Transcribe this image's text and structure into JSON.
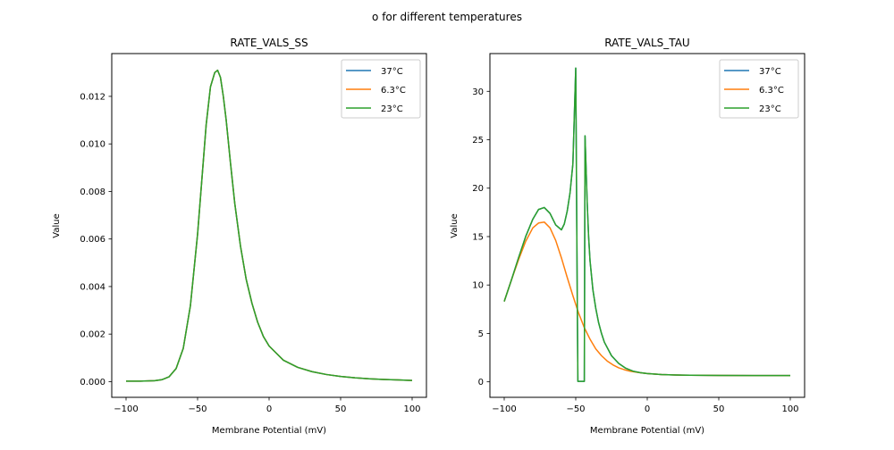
{
  "figure": {
    "suptitle": "o for different temperatures"
  },
  "chart_data": [
    {
      "type": "line",
      "title": "RATE_VALS_SS",
      "xlabel": "Membrane Potential (mV)",
      "ylabel": "Value",
      "xlim": [
        -110,
        110
      ],
      "ylim": [
        -0.00066,
        0.0138
      ],
      "xticks": [
        -100,
        -50,
        0,
        50,
        100
      ],
      "xtick_labels": [
        "−100",
        "−50",
        "0",
        "50",
        "100"
      ],
      "yticks": [
        0.0,
        0.002,
        0.004,
        0.006,
        0.008,
        0.01,
        0.012
      ],
      "ytick_labels": [
        "0.000",
        "0.002",
        "0.004",
        "0.006",
        "0.008",
        "0.010",
        "0.012"
      ],
      "grid": false,
      "legend_position": "top-right",
      "x": [
        -100,
        -90,
        -80,
        -75,
        -70,
        -65,
        -60,
        -55,
        -50,
        -47,
        -44,
        -41,
        -38,
        -36,
        -34,
        -32,
        -30,
        -27,
        -24,
        -20,
        -16,
        -12,
        -8,
        -4,
        0,
        5,
        10,
        15,
        20,
        30,
        40,
        50,
        60,
        70,
        80,
        90,
        100
      ],
      "series": [
        {
          "name": "37°C",
          "color": "#1f77b4",
          "values": [
            2e-05,
            2e-05,
            4e-05,
            8e-05,
            0.0002,
            0.00055,
            0.0014,
            0.0032,
            0.0062,
            0.0085,
            0.0108,
            0.0124,
            0.013,
            0.0131,
            0.0128,
            0.012,
            0.011,
            0.0092,
            0.0075,
            0.0057,
            0.0043,
            0.0033,
            0.0025,
            0.0019,
            0.0015,
            0.0012,
            0.0009,
            0.00075,
            0.0006,
            0.00042,
            0.0003,
            0.00022,
            0.00016,
            0.00012,
            9e-05,
            7e-05,
            5e-05
          ]
        },
        {
          "name": "6.3°C",
          "color": "#ff7f0e",
          "values": [
            2e-05,
            2e-05,
            4e-05,
            8e-05,
            0.0002,
            0.00055,
            0.0014,
            0.0032,
            0.0062,
            0.0085,
            0.0108,
            0.0124,
            0.013,
            0.0131,
            0.0128,
            0.012,
            0.011,
            0.0092,
            0.0075,
            0.0057,
            0.0043,
            0.0033,
            0.0025,
            0.0019,
            0.0015,
            0.0012,
            0.0009,
            0.00075,
            0.0006,
            0.00042,
            0.0003,
            0.00022,
            0.00016,
            0.00012,
            9e-05,
            7e-05,
            5e-05
          ]
        },
        {
          "name": "23°C",
          "color": "#2ca02c",
          "values": [
            2e-05,
            2e-05,
            4e-05,
            8e-05,
            0.0002,
            0.00055,
            0.0014,
            0.0032,
            0.0062,
            0.0085,
            0.0108,
            0.0124,
            0.013,
            0.0131,
            0.0128,
            0.012,
            0.011,
            0.0092,
            0.0075,
            0.0057,
            0.0043,
            0.0033,
            0.0025,
            0.0019,
            0.0015,
            0.0012,
            0.0009,
            0.00075,
            0.0006,
            0.00042,
            0.0003,
            0.00022,
            0.00016,
            0.00012,
            9e-05,
            7e-05,
            5e-05
          ]
        }
      ]
    },
    {
      "type": "line",
      "title": "RATE_VALS_TAU",
      "xlabel": "Membrane Potential (mV)",
      "ylabel": "Value",
      "xlim": [
        -110,
        110
      ],
      "ylim": [
        -1.6,
        33.9
      ],
      "xticks": [
        -100,
        -50,
        0,
        50,
        100
      ],
      "xtick_labels": [
        "−100",
        "−50",
        "0",
        "50",
        "100"
      ],
      "yticks": [
        0,
        5,
        10,
        15,
        20,
        25,
        30
      ],
      "ytick_labels": [
        "0",
        "5",
        "10",
        "15",
        "20",
        "25",
        "30"
      ],
      "grid": false,
      "legend_position": "top-right",
      "series": [
        {
          "name": "37°C",
          "color": "#1f77b4",
          "x": [
            -100,
            -95,
            -90,
            -85,
            -80,
            -76,
            -72,
            -68,
            -64,
            -60,
            -58,
            -56,
            -54,
            -52,
            -50,
            -49,
            -48.5,
            -47,
            -45,
            -44,
            -43.5,
            -42,
            -41,
            -40,
            -38,
            -36,
            -34,
            -32,
            -30,
            -25,
            -20,
            -15,
            -10,
            -5,
            0,
            10,
            20,
            30,
            50,
            75,
            100
          ],
          "values": [
            8.3,
            10.5,
            12.8,
            15.0,
            16.8,
            17.8,
            18.0,
            17.4,
            16.2,
            15.7,
            16.3,
            17.6,
            19.5,
            22.5,
            32.4,
            10.0,
            0.05,
            0.05,
            0.05,
            0.05,
            25.4,
            18.5,
            15.0,
            12.5,
            9.5,
            7.6,
            6.1,
            5.0,
            4.1,
            2.7,
            1.9,
            1.4,
            1.1,
            0.95,
            0.85,
            0.75,
            0.7,
            0.68,
            0.66,
            0.65,
            0.65
          ]
        },
        {
          "name": "6.3°C",
          "color": "#ff7f0e",
          "x": [
            -100,
            -95,
            -90,
            -85,
            -80,
            -76,
            -72,
            -68,
            -64,
            -60,
            -56,
            -52,
            -48,
            -44,
            -40,
            -36,
            -32,
            -28,
            -24,
            -20,
            -16,
            -12,
            -8,
            -4,
            0,
            10,
            20,
            30,
            50,
            75,
            100
          ],
          "values": [
            8.3,
            10.5,
            12.6,
            14.5,
            15.9,
            16.4,
            16.5,
            15.9,
            14.6,
            12.8,
            10.8,
            8.9,
            7.1,
            5.6,
            4.4,
            3.4,
            2.7,
            2.15,
            1.75,
            1.45,
            1.25,
            1.1,
            1.0,
            0.92,
            0.85,
            0.75,
            0.7,
            0.68,
            0.66,
            0.65,
            0.65
          ]
        },
        {
          "name": "23°C",
          "color": "#2ca02c",
          "x": [
            -100,
            -95,
            -90,
            -85,
            -80,
            -76,
            -72,
            -68,
            -64,
            -60,
            -58,
            -56,
            -54,
            -52,
            -50,
            -49,
            -48.5,
            -47,
            -45,
            -44,
            -43.5,
            -42,
            -41,
            -40,
            -38,
            -36,
            -34,
            -32,
            -30,
            -25,
            -20,
            -15,
            -10,
            -5,
            0,
            10,
            20,
            30,
            50,
            75,
            100
          ],
          "values": [
            8.3,
            10.5,
            12.8,
            15.0,
            16.8,
            17.8,
            18.0,
            17.4,
            16.2,
            15.7,
            16.3,
            17.6,
            19.5,
            22.5,
            32.4,
            10.0,
            0.05,
            0.05,
            0.05,
            0.05,
            25.4,
            18.5,
            15.0,
            12.5,
            9.5,
            7.6,
            6.1,
            5.0,
            4.1,
            2.7,
            1.9,
            1.4,
            1.1,
            0.95,
            0.85,
            0.75,
            0.7,
            0.68,
            0.66,
            0.65,
            0.65
          ]
        }
      ]
    }
  ]
}
